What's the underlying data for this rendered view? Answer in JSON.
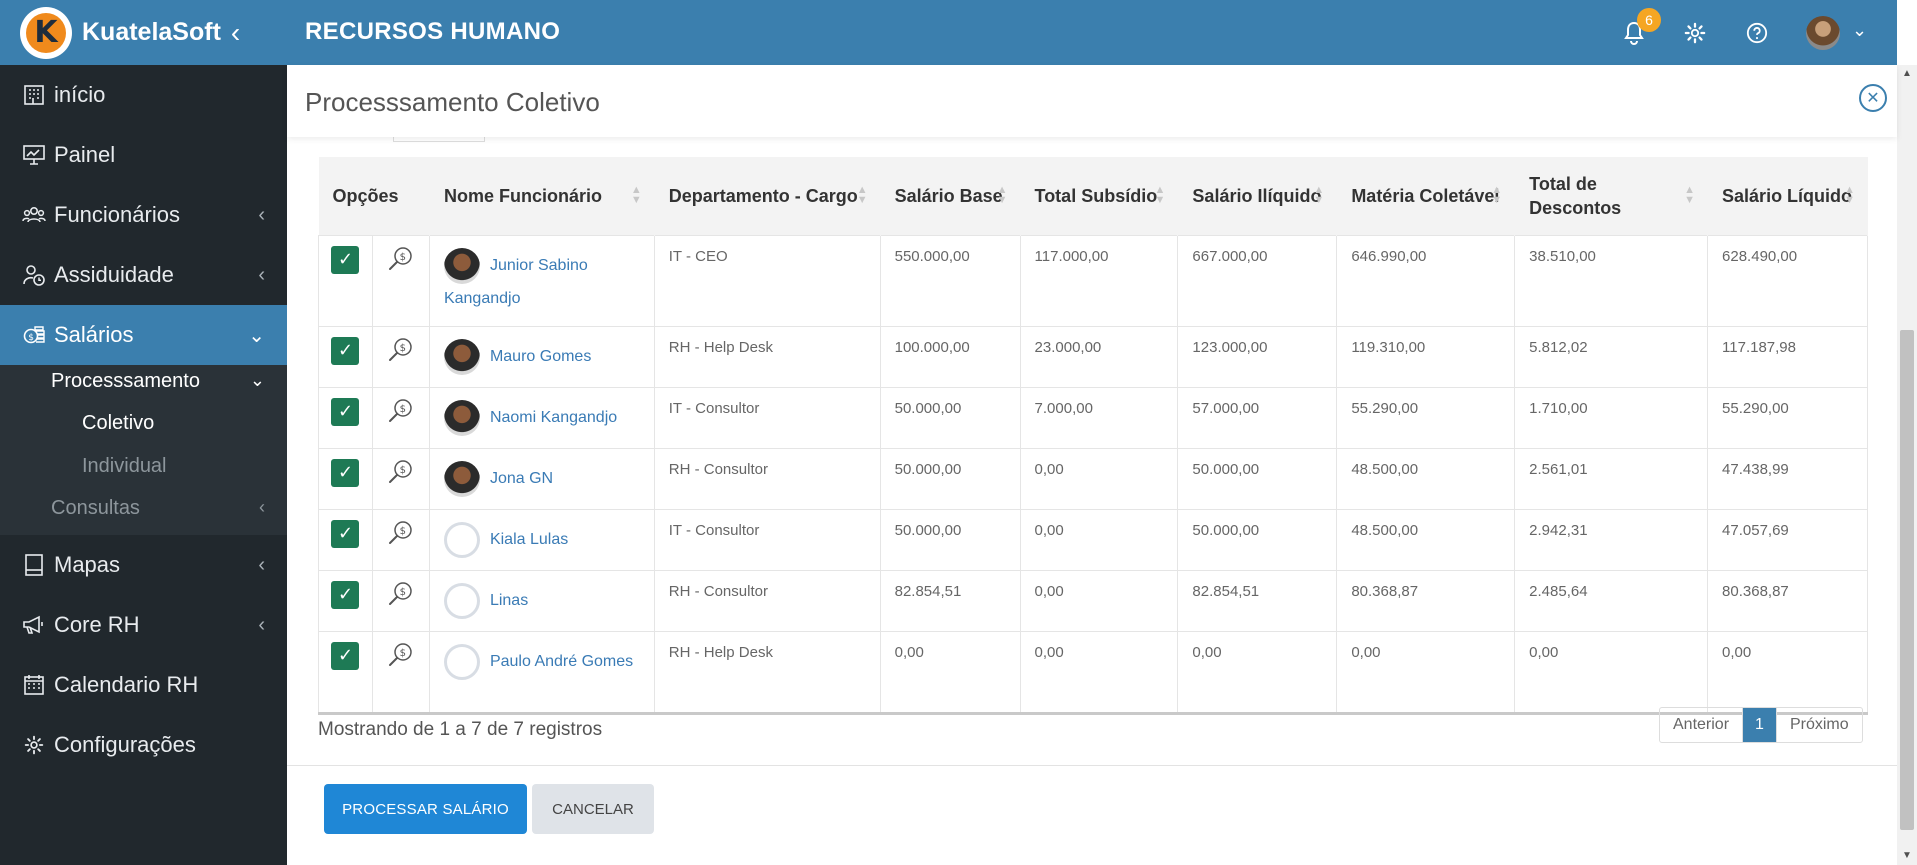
{
  "brand": {
    "name": "KuatelaSoft",
    "logo_letter": "K"
  },
  "header": {
    "module_title": "RECURSOS HUMANO",
    "notifications_count": "6"
  },
  "sidebar": {
    "items": [
      {
        "label": "início",
        "icon": "building-icon"
      },
      {
        "label": "Painel",
        "icon": "presentation-chart-icon"
      },
      {
        "label": "Funcionários",
        "icon": "users-icon"
      },
      {
        "label": "Assiduidade",
        "icon": "user-clock-icon"
      },
      {
        "label": "Salários",
        "icon": "coins-icon"
      },
      {
        "label": "Mapas",
        "icon": "book-icon"
      },
      {
        "label": "Core RH",
        "icon": "megaphone-icon"
      },
      {
        "label": "Calendario RH",
        "icon": "calendar-icon"
      },
      {
        "label": "Configurações",
        "icon": "gear-icon"
      }
    ],
    "submenu": {
      "processamento": "Processsamento",
      "coletivo": "Coletivo",
      "individual": "Individual",
      "consultas": "Consultas"
    }
  },
  "panel": {
    "title": "Processsamento Coletivo"
  },
  "table": {
    "columns": [
      "Opções",
      "Nome Funcionário",
      "Departamento - Cargo",
      "Salário Base",
      "Total Subsídio",
      "Salário Ilíquido",
      "Matéria Coletável",
      "Total de Descontos",
      "Salário Líquido"
    ],
    "rows": [
      {
        "name": "Junior Sabino Kangandjo",
        "avatar": "photo",
        "dept": "IT - CEO",
        "base": "550.000,00",
        "subsidio": "117.000,00",
        "iliquido": "667.000,00",
        "materia": "646.990,00",
        "descontos": "38.510,00",
        "liquido": "628.490,00"
      },
      {
        "name": "Mauro Gomes",
        "avatar": "photo",
        "dept": "RH - Help Desk",
        "base": "100.000,00",
        "subsidio": "23.000,00",
        "iliquido": "123.000,00",
        "materia": "119.310,00",
        "descontos": "5.812,02",
        "liquido": "117.187,98"
      },
      {
        "name": "Naomi Kangandjo",
        "avatar": "photo",
        "dept": "IT - Consultor",
        "base": "50.000,00",
        "subsidio": "7.000,00",
        "iliquido": "57.000,00",
        "materia": "55.290,00",
        "descontos": "1.710,00",
        "liquido": "55.290,00"
      },
      {
        "name": "Jona GN",
        "avatar": "photo",
        "dept": "RH - Consultor",
        "base": "50.000,00",
        "subsidio": "0,00",
        "iliquido": "50.000,00",
        "materia": "48.500,00",
        "descontos": "2.561,01",
        "liquido": "47.438,99"
      },
      {
        "name": "Kiala Lulas",
        "avatar": "blank",
        "dept": "IT - Consultor",
        "base": "50.000,00",
        "subsidio": "0,00",
        "iliquido": "50.000,00",
        "materia": "48.500,00",
        "descontos": "2.942,31",
        "liquido": "47.057,69"
      },
      {
        "name": "Linas",
        "avatar": "blank",
        "dept": "RH - Consultor",
        "base": "82.854,51",
        "subsidio": "0,00",
        "iliquido": "82.854,51",
        "materia": "80.368,87",
        "descontos": "2.485,64",
        "liquido": "80.368,87"
      },
      {
        "name": "Paulo André Gomes",
        "avatar": "blank",
        "dept": "RH - Help Desk",
        "base": "0,00",
        "subsidio": "0,00",
        "iliquido": "0,00",
        "materia": "0,00",
        "descontos": "0,00",
        "liquido": "0,00"
      }
    ]
  },
  "footer": {
    "info": "Mostrando de 1 a 7 de 7 registros"
  },
  "pagination": {
    "prev": "Anterior",
    "current": "1",
    "next": "Próximo"
  },
  "actions": {
    "process": "PROCESSAR SALÁRIO",
    "cancel": "CANCELAR"
  },
  "colors": {
    "primary": "#3b7fae",
    "sidebar_bg": "#21282d",
    "checkbox": "#1e7a55",
    "button_primary": "#1f87d6",
    "badge": "#f5a623"
  }
}
